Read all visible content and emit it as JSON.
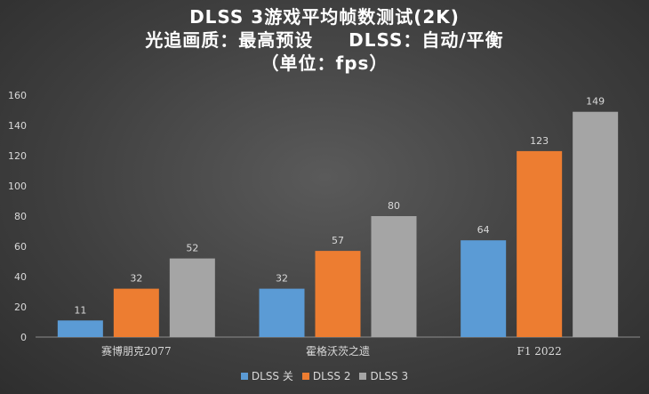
{
  "chart_data": {
    "type": "bar",
    "title_lines": [
      "DLSS 3游戏平均帧数测试(2K)",
      "光追画质：最高预设     DLSS：自动/平衡",
      "（单位：fps）"
    ],
    "categories": [
      "赛博朋克2077",
      "霍格沃茨之遗",
      "F1 2022"
    ],
    "series": [
      {
        "name": "DLSS 关",
        "values": [
          11,
          32,
          64
        ],
        "color": "#5b9bd5"
      },
      {
        "name": "DLSS 2",
        "values": [
          32,
          57,
          123
        ],
        "color": "#ed7d31"
      },
      {
        "name": "DLSS 3",
        "values": [
          52,
          80,
          149
        ],
        "color": "#a5a5a5"
      }
    ],
    "ylim": [
      0,
      160
    ],
    "yticks": [
      0,
      20,
      40,
      60,
      80,
      100,
      120,
      140,
      160
    ],
    "grid": false,
    "legend": "bottom"
  }
}
